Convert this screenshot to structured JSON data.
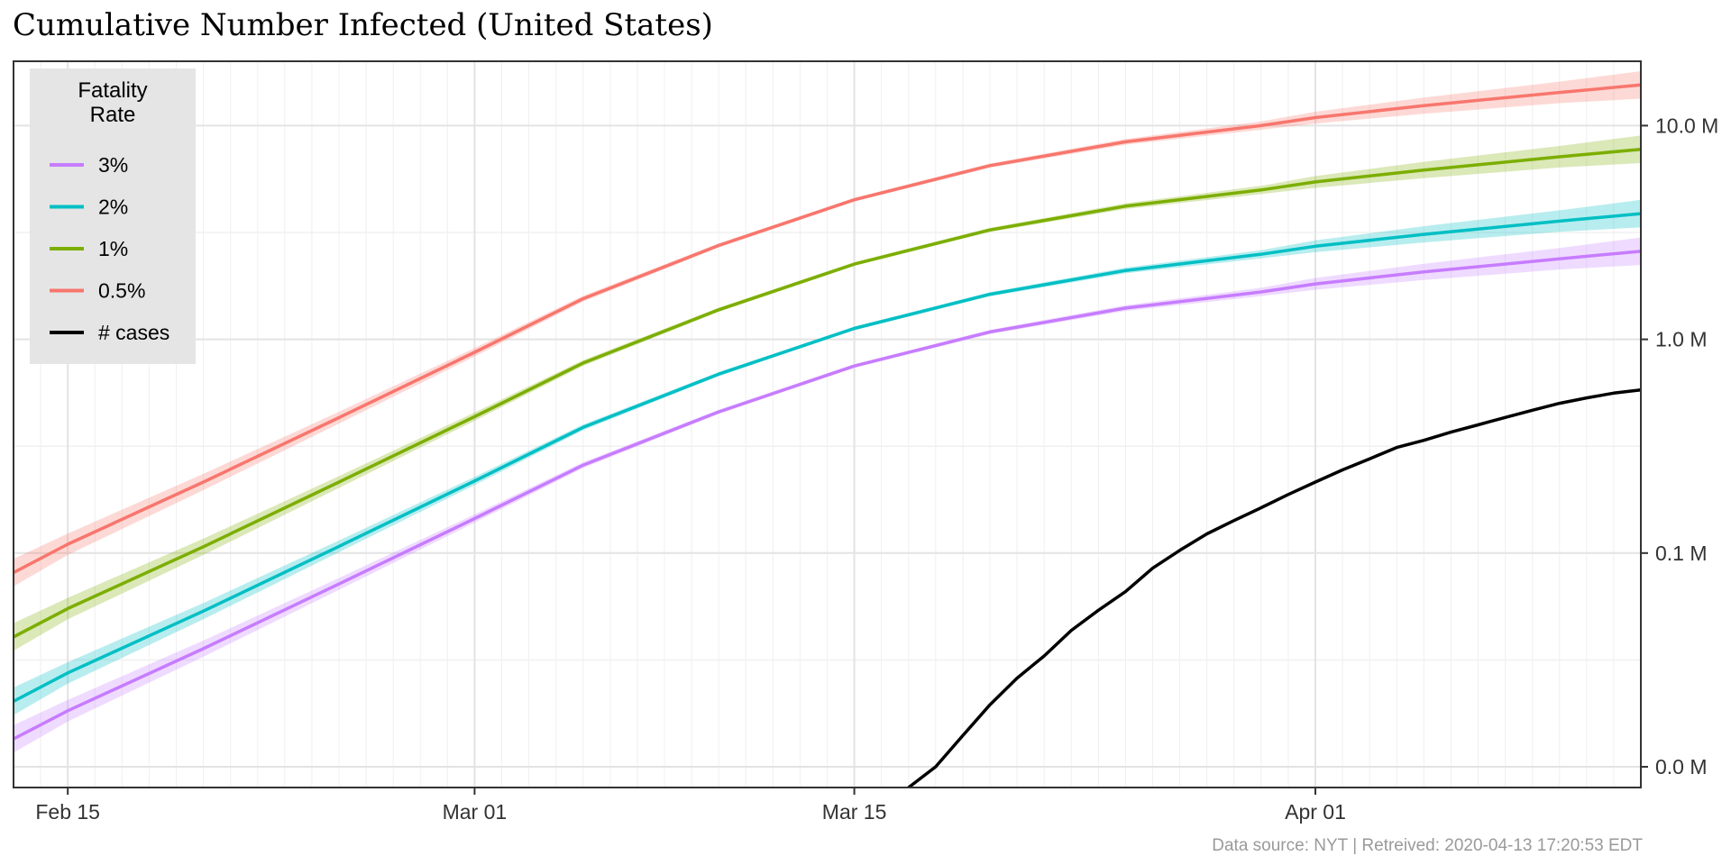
{
  "chart_data": {
    "type": "line",
    "title": "Cumulative Number Infected (United States)",
    "xlabel": "",
    "ylabel": "",
    "x_axis": {
      "type": "date",
      "range": [
        "2020-02-13",
        "2020-04-13"
      ],
      "ticks": [
        {
          "value": "2020-02-15",
          "label": "Feb 15"
        },
        {
          "value": "2020-03-01",
          "label": "Mar 01"
        },
        {
          "value": "2020-03-15",
          "label": "Mar 15"
        },
        {
          "value": "2020-04-01",
          "label": "Apr 01"
        }
      ]
    },
    "y_axis": {
      "scale": "log10",
      "position": "right",
      "range": [
        8000,
        20000000
      ],
      "ticks": [
        {
          "value": 10000,
          "label": "0.0 M"
        },
        {
          "value": 100000,
          "label": "0.1 M"
        },
        {
          "value": 1000000,
          "label": "1.0 M"
        },
        {
          "value": 10000000,
          "label": "10.0 M"
        }
      ]
    },
    "grid": true,
    "legend": {
      "title_lines": [
        "Fatality",
        "Rate"
      ],
      "position": "top-left",
      "entries": [
        {
          "label": "3%",
          "color": "#C77CFF"
        },
        {
          "label": "2%",
          "color": "#00BFC4"
        },
        {
          "label": "1%",
          "color": "#7CAE00"
        },
        {
          "label": "0.5%",
          "color": "#F8766D"
        },
        {
          "label": "# cases",
          "color": "#000000"
        }
      ]
    },
    "x": [
      "2020-02-13",
      "2020-02-15",
      "2020-02-20",
      "2020-02-25",
      "2020-03-01",
      "2020-03-05",
      "2020-03-10",
      "2020-03-15",
      "2020-03-20",
      "2020-03-25",
      "2020-03-30",
      "2020-04-01",
      "2020-04-05",
      "2020-04-10",
      "2020-04-13"
    ],
    "series": [
      {
        "name": "0.5%",
        "color": "#F8766D",
        "band": true,
        "values": [
          81000,
          110000,
          215000,
          430000,
          870000,
          1550000,
          2750000,
          4500000,
          6500000,
          8400000,
          10000000,
          10900000,
          12400000,
          14300000,
          15500000
        ]
      },
      {
        "name": "1%",
        "color": "#7CAE00",
        "band": true,
        "values": [
          40500,
          55000,
          107000,
          215000,
          435000,
          775000,
          1375000,
          2250000,
          3250000,
          4200000,
          5000000,
          5450000,
          6200000,
          7150000,
          7750000
        ]
      },
      {
        "name": "2%",
        "color": "#00BFC4",
        "band": true,
        "values": [
          20250,
          27500,
          53500,
          107500,
          217500,
          387500,
          687500,
          1125000,
          1625000,
          2100000,
          2500000,
          2725000,
          3100000,
          3575000,
          3875000
        ]
      },
      {
        "name": "3%",
        "color": "#C77CFF",
        "band": true,
        "values": [
          13500,
          18300,
          35700,
          71700,
          145000,
          258000,
          458000,
          750000,
          1083000,
          1400000,
          1667000,
          1817000,
          2067000,
          2383000,
          2583000
        ]
      },
      {
        "name": "# cases",
        "color": "#000000",
        "band": false,
        "x": [
          "2020-03-17",
          "2020-03-18",
          "2020-03-19",
          "2020-03-20",
          "2020-03-21",
          "2020-03-22",
          "2020-03-23",
          "2020-03-24",
          "2020-03-25",
          "2020-03-26",
          "2020-03-27",
          "2020-03-28",
          "2020-03-29",
          "2020-03-30",
          "2020-03-31",
          "2020-04-01",
          "2020-04-02",
          "2020-04-03",
          "2020-04-04",
          "2020-04-05",
          "2020-04-06",
          "2020-04-07",
          "2020-04-08",
          "2020-04-09",
          "2020-04-10",
          "2020-04-11",
          "2020-04-12",
          "2020-04-13"
        ],
        "values": [
          8000,
          10000,
          14000,
          19500,
          26000,
          33000,
          43500,
          54000,
          66000,
          85000,
          103000,
          123000,
          142000,
          163000,
          188000,
          215000,
          245000,
          276000,
          312000,
          337000,
          368000,
          398000,
          431000,
          466000,
          502000,
          532000,
          560000,
          580000
        ]
      }
    ],
    "caption": "Data source: NYT  |  Retreived: 2020-04-13 17:20:53 EDT"
  }
}
